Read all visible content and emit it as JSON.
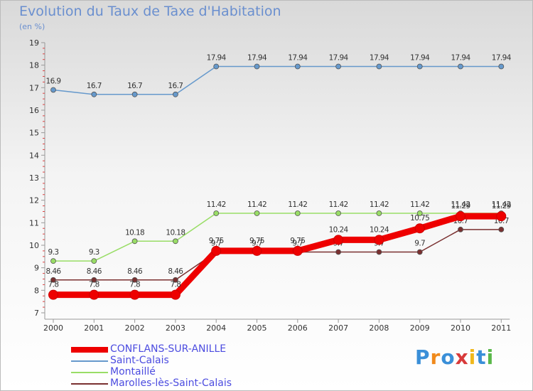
{
  "chart_data": {
    "type": "line",
    "title": "Evolution du Taux de Taxe d'Habitation",
    "subtitle": "(en %)",
    "xlabel": "",
    "ylabel": "",
    "categories": [
      "2000",
      "2001",
      "2002",
      "2003",
      "2004",
      "2005",
      "2006",
      "2007",
      "2008",
      "2009",
      "2010",
      "2011"
    ],
    "ylim": [
      7,
      19
    ],
    "yticks": [
      "7",
      "8",
      "9",
      "10",
      "11",
      "12",
      "13",
      "14",
      "15",
      "16",
      "17",
      "18",
      "19"
    ],
    "grid": false,
    "legend_position": "bottom-left",
    "series": [
      {
        "name": "Saint-Calais",
        "color": "#6699cc",
        "values": [
          16.9,
          16.7,
          16.7,
          16.7,
          17.94,
          17.94,
          17.94,
          17.94,
          17.94,
          17.94,
          17.94,
          17.94
        ],
        "labels": [
          "16.9",
          "16.7",
          "16.7",
          "16.7",
          "17.94",
          "17.94",
          "17.94",
          "17.94",
          "17.94",
          "17.94",
          "17.94",
          "17.94"
        ]
      },
      {
        "name": "Montaillé",
        "color": "#99dd66",
        "values": [
          9.3,
          9.3,
          10.18,
          10.18,
          11.42,
          11.42,
          11.42,
          11.42,
          11.42,
          11.42,
          11.42,
          11.42
        ],
        "labels": [
          "9.3",
          "9.3",
          "10.18",
          "10.18",
          "11.42",
          "11.42",
          "11.42",
          "11.42",
          "11.42",
          "11.42",
          "11.42",
          "11.42"
        ]
      },
      {
        "name": "Marolles-lès-Saint-Calais",
        "color": "#7a3030",
        "values": [
          8.46,
          8.46,
          8.46,
          8.46,
          9.7,
          9.7,
          9.7,
          9.7,
          9.7,
          9.7,
          10.7,
          10.7
        ],
        "labels": [
          "8.46",
          "8.46",
          "8.46",
          "8.46",
          "9.7",
          "9.7",
          "9.7",
          "9.7",
          "9.7",
          "9.7",
          "10.7",
          "10.7"
        ]
      },
      {
        "name": "CONFLANS-SUR-ANILLE",
        "color": "#ee0000",
        "values": [
          7.8,
          7.8,
          7.8,
          7.8,
          9.75,
          9.75,
          9.75,
          10.24,
          10.24,
          10.75,
          11.29,
          11.29
        ],
        "labels": [
          "7.8",
          "7.8",
          "7.8",
          "7.8",
          "9.75",
          "9.75",
          "9.75",
          "10.24",
          "10.24",
          "10.75",
          "11.29",
          "11.29"
        ]
      }
    ]
  },
  "legend": {
    "items": [
      {
        "label": "CONFLANS-SUR-ANILLE",
        "color": "#ee0000"
      },
      {
        "label": "Saint-Calais",
        "color": "#6699cc"
      },
      {
        "label": "Montaillé",
        "color": "#99dd66"
      },
      {
        "label": "Marolles-lès-Saint-Calais",
        "color": "#7a3030"
      }
    ]
  },
  "brand": {
    "text": "Proxiti",
    "letters": [
      "P",
      "r",
      "o",
      "x",
      "i",
      "t",
      "i"
    ],
    "colors": [
      "#3a8fd8",
      "#f08a1c",
      "#3a8fd8",
      "#d83a3a",
      "#f0b81c",
      "#3a8fd8",
      "#5ab84a"
    ]
  }
}
